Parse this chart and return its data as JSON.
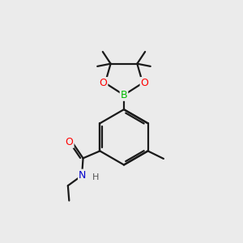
{
  "bg_color": "#ebebeb",
  "bond_color": "#1a1a1a",
  "atom_colors": {
    "O": "#ff0000",
    "B": "#00bb00",
    "N": "#0000cc",
    "H": "#555555"
  },
  "bond_width": 1.6,
  "figsize": [
    3.0,
    3.0
  ],
  "dpi": 100
}
